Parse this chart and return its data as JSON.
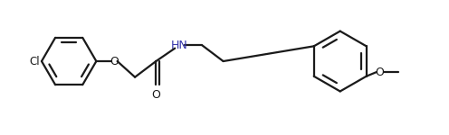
{
  "bg_color": "#ffffff",
  "line_color": "#1a1a1a",
  "nh_color": "#3333aa",
  "line_width": 1.6,
  "figsize": [
    4.96,
    1.5
  ],
  "dpi": 100,
  "xlim": [
    0,
    10.5
  ],
  "ylim": [
    0,
    3.2
  ]
}
